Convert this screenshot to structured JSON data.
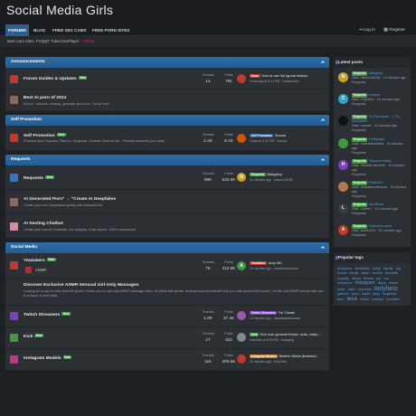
{
  "header": {
    "title": "Social Media Girls"
  },
  "nav": {
    "tabs": [
      "FORUMS",
      "BLOG",
      "FREE SEX CAMS",
      "FREE PORN SITES"
    ],
    "login": "Log in",
    "register": "Register"
  },
  "subnav": [
    "Best Cam Sites",
    "FUQQT Tube",
    "CamPlayer",
    "Dating"
  ],
  "labels": {
    "threads": "Threads",
    "posts": "Posts",
    "new": "New",
    "latest_posts": "Latest posts",
    "popular_tags": "Popular tags"
  },
  "sections": [
    {
      "title": "Announcements",
      "nodes": [
        {
          "title": "Forum Guides & Updates",
          "badge": true,
          "threads": "12",
          "posts": "781",
          "prefix": "News",
          "prefix_color": "#c0392b",
          "last_title": "How to use the Ignore feature",
          "last_meta": "Yesterday at 9:21 PM · Ducktective",
          "av": "",
          "av_color": "#c0392b",
          "icon_color": "#c0392b"
        },
        {
          "title": "Best AI porn of 2024",
          "badge": false,
          "desc": "AI tool - undress, sexting, generate and more. Try for free!",
          "icon_color": "#8a6a55"
        }
      ]
    },
    {
      "title": "Self Promotion",
      "nodes": [
        {
          "title": "Self Promotion",
          "badge": true,
          "desc": "Promote your Onlyfans, Patreon, Snapchat, Youtube Channel etc.. Promote whatever you want!",
          "threads": "2.4K",
          "posts": "8.1K",
          "prefix": "Self Promotion",
          "prefix_color": "#2b5f93",
          "last_title": "Socola",
          "last_meta": "Today at 3:23 PM · Socola",
          "av": "",
          "av_color": "#d35400",
          "icon_color": "#c0392b"
        }
      ]
    },
    {
      "title": "Requests",
      "nodes": [
        {
          "title": "Requests",
          "badge": true,
          "threads": "99K",
          "posts": "632.6K",
          "prefix": "Requests",
          "prefix_color": "#3f9a41",
          "last_title": "Babyjinxy",
          "last_meta": "10 minutes ago · name236236",
          "av": "N",
          "av_color": "#c9a227",
          "icon_color": "#3a76b5"
        },
        {
          "title": "AI Generated Porn\" → \"Create AI Deepfakes",
          "badge": false,
          "desc": "Create your own Deepfakes quickly with advanced AI",
          "icon_color": "#8a6a55"
        },
        {
          "title": "AI Sexting Chatbot",
          "badge": false,
          "desc": "Create your own AI Soulmate, sex roleplay, erotic stories. 100% uncensored.",
          "icon_color": "#d98c9a"
        }
      ]
    },
    {
      "title": "Social Media",
      "nodes": [
        {
          "title": "Youtubers",
          "badge": true,
          "sub": "ASMR",
          "threads": "7K",
          "posts": "212.8K",
          "prefix": "Youtubers",
          "prefix_color": "#c0392b",
          "last_title": "Azzy MC",
          "last_meta": "10 minutes ago · anotherrandomm",
          "av": "A",
          "av_color": "#3f9a41",
          "icon_color": "#c0392b"
        },
        {
          "title": "Discover Exclusive ASMR Sensual Girl-Only Massages",
          "badge": false,
          "desc": "Looking for a way to relax and feel great? Check out our girl-only ASMR massage video. It's filled with gentle, sensual touches that will help you chill out and find peace. Let the soft ASMR sounds take you to a place of pure bliss.",
          "icon_color": ""
        },
        {
          "title": "Twitch Streamers",
          "badge": true,
          "threads": "1.9K",
          "posts": "37.4K",
          "prefix": "Twitch Streamers",
          "prefix_color": "#7d3fc4",
          "last_title": "Fer Okabe",
          "last_meta": "10 minutes ago · liaaaaaaaaaaaaaa",
          "av": "",
          "av_color": "#9b59b6",
          "icon_color": "#7d3fc4"
        },
        {
          "title": "Kick",
          "badge": true,
          "threads": "27",
          "posts": "422",
          "prefix": "Kick",
          "prefix_color": "#3f9a41",
          "last_title": "Kick.com general thread, vods, snips,...",
          "last_meta": "Saturday at 8:09 PM · fuckgarig",
          "av": "",
          "av_color": "#7f8c8d",
          "icon_color": "#3f9a41"
        },
        {
          "title": "Instagram Models",
          "badge": true,
          "threads": "11K",
          "posts": "200.6K",
          "prefix": "Instagram Models",
          "prefix_color": "#c57b2b",
          "last_title": "Beatriz Vitória (beatrizvi...",
          "last_meta": "10 minutes ago · Futoribai",
          "av": "",
          "av_color": "#c0392b",
          "icon_color": "#c13584"
        }
      ]
    }
  ],
  "latest_posts": [
    {
      "av": "N",
      "av_color": "#c9a227",
      "title": "Babyjinxy",
      "meta": "User: name236236 · 10 minutes ago",
      "forum": "Requests"
    },
    {
      "av": "C",
      "av_color": "#2aa7c9",
      "title": "Izuliana",
      "meta": "User: Coyimha · 10 minutes ago",
      "forum": "Requests"
    },
    {
      "av": "",
      "av_color": "#111",
      "title": "Tiv Enchantét ☆ | Tiv enchanted",
      "meta": "User: rosewil · 10 minutes ago",
      "forum": "Requests"
    },
    {
      "av": "",
      "av_color": "#3f9a41",
      "title": "Kit Nguyen",
      "meta": "User: mamiedemalha · 10 minutes ago",
      "forum": "Requests"
    },
    {
      "av": "H",
      "av_color": "#7d3fc4",
      "title": "Shannon bailey",
      "meta": "User: Hombre bevnetx · 10 minutes ago",
      "forum": "Requests"
    },
    {
      "av": "",
      "av_color": "#b07a4a",
      "title": "Pinkfrw11",
      "meta": "User: lanadiazpoferman · 11 minutes ago",
      "forum": "Requests"
    },
    {
      "av": "L",
      "av_color": "#3a3d42",
      "title": "Vira Blista",
      "meta": "User: Lanfer7 · 12 minutes ago",
      "forum": "Requests"
    },
    {
      "av": "A",
      "av_color": "#c0392b",
      "title": "Gulbonia Lopes",
      "meta": "User: Azerty274 · 13 minutes ago",
      "forum": "Requests"
    }
  ],
  "tags": [
    {
      "t": "#onlyfans",
      "s": ""
    },
    {
      "t": "#onlyfans",
      "s": ""
    },
    {
      "t": "busty",
      "s": ""
    },
    {
      "t": "big tits",
      "s": ""
    },
    {
      "t": "big boobs",
      "s": ""
    },
    {
      "t": "fansly",
      "s": ""
    },
    {
      "t": "asian",
      "s": ""
    },
    {
      "t": "blonde",
      "s": ""
    },
    {
      "t": "brunette",
      "s": ""
    },
    {
      "t": "cosplay",
      "s": ""
    },
    {
      "t": "ebony",
      "s": ""
    },
    {
      "t": "fitness",
      "s": ""
    },
    {
      "t": "girl",
      "s": ""
    },
    {
      "t": "hot",
      "s": ""
    },
    {
      "t": "influencer",
      "s": ""
    },
    {
      "t": "instagram",
      "s": "med"
    },
    {
      "t": "latina",
      "s": ""
    },
    {
      "t": "model",
      "s": ""
    },
    {
      "t": "nude",
      "s": ""
    },
    {
      "t": "nsfw",
      "s": ""
    },
    {
      "t": "only fans",
      "s": ""
    },
    {
      "t": "onlyfans",
      "s": "big"
    },
    {
      "t": "patreon",
      "s": ""
    },
    {
      "t": "porn",
      "s": ""
    },
    {
      "t": "reddit",
      "s": ""
    },
    {
      "t": "sexy",
      "s": ""
    },
    {
      "t": "snapchat",
      "s": ""
    },
    {
      "t": "teen",
      "s": ""
    },
    {
      "t": "tiktok",
      "s": "med"
    },
    {
      "t": "twitch",
      "s": ""
    },
    {
      "t": "youtube",
      "s": ""
    },
    {
      "t": "youtuber",
      "s": ""
    }
  ]
}
